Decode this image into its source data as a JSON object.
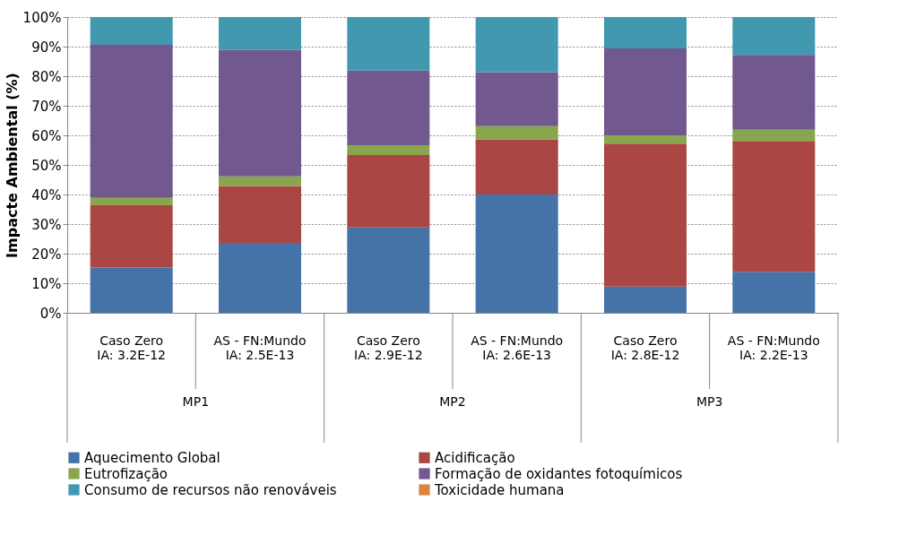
{
  "chart_data": {
    "type": "bar",
    "stacked": true,
    "ylabel": "Impacte Ambiental (%)",
    "categories": [
      "Caso Zero\nIA: 3.2E-12",
      "AS - FN:Mundo\nIA: 2.5E-13",
      "Caso Zero\nIA: 2.9E-12",
      "AS - FN:Mundo\nIA: 2.6E-13",
      "Caso Zero\nIA: 2.8E-12",
      "AS - FN:Mundo\nIA: 2.2E-13"
    ],
    "series": [
      {
        "name": "Aquecimento Global",
        "color": "#4572a7",
        "values": [
          15.3,
          23.6,
          28.9,
          40.0,
          8.9,
          13.9
        ]
      },
      {
        "name": "Acidificação",
        "color": "#aa4643",
        "values": [
          21.1,
          19.2,
          24.4,
          18.6,
          48.3,
          44.2
        ]
      },
      {
        "name": "Eutrofização",
        "color": "#89a54e",
        "values": [
          2.5,
          3.3,
          3.4,
          4.5,
          2.8,
          3.8
        ]
      },
      {
        "name": "Formação de oxidantes fotoquímicos",
        "color": "#71588f",
        "values": [
          51.7,
          42.8,
          25.2,
          18.3,
          29.4,
          25.3
        ]
      },
      {
        "name": "Consumo de recursos não renováveis",
        "color": "#4198af",
        "values": [
          9.4,
          11.1,
          18.1,
          18.6,
          10.6,
          12.8
        ]
      },
      {
        "name": "Toxicidade humana",
        "color": "#db843d",
        "values": [
          0,
          0,
          0,
          0,
          0,
          0
        ]
      }
    ],
    "ylim": [
      0,
      100
    ],
    "yticks": [
      {
        "value": 0,
        "label": "0%"
      },
      {
        "value": 10,
        "label": "10%"
      },
      {
        "value": 20,
        "label": "20%"
      },
      {
        "value": 30,
        "label": "30%"
      },
      {
        "value": 40,
        "label": "40%"
      },
      {
        "value": 50,
        "label": "50%"
      },
      {
        "value": 60,
        "label": "60%"
      },
      {
        "value": 70,
        "label": "70%"
      },
      {
        "value": 80,
        "label": "80%"
      },
      {
        "value": 90,
        "label": "90%"
      },
      {
        "value": 100,
        "label": "100%"
      }
    ],
    "grid": "y",
    "legend": "bottom",
    "annotations": [
      "MP1",
      "MP2",
      "MP3"
    ]
  }
}
